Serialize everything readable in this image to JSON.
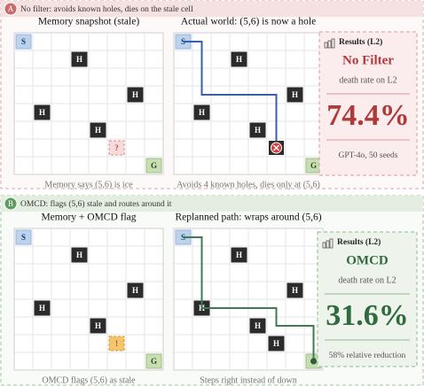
{
  "panel_a": {
    "badge": "A",
    "header": "No filter: avoids known holes, dies on the stale cell",
    "left": {
      "title": "Memory snapshot (stale)",
      "caption": "Memory says (5,6) is ice",
      "cells": [
        "S",
        "H",
        "H",
        "H",
        "H",
        "?",
        "G"
      ]
    },
    "right": {
      "title": "Actual world: (5,6) is now a hole",
      "caption": "Avoids 4 known holes, dies only at (5,6)",
      "cells": [
        "S",
        "H",
        "H",
        "H",
        "H",
        "G"
      ]
    },
    "results": {
      "heading": "Results (L2)",
      "method": "No Filter",
      "metric": "death rate on L2",
      "value": "74.4%",
      "note": "GPT-4o, 50 seeds"
    }
  },
  "panel_b": {
    "badge": "B",
    "header": "OMCD: flags (5,6) stale and routes around it",
    "left": {
      "title": "Memory + OMCD flag",
      "caption": "OMCD flags (5,6) as stale",
      "cells": [
        "S",
        "H",
        "H",
        "H",
        "H",
        "!",
        "G"
      ]
    },
    "right": {
      "title": "Replanned path: wraps around (5,6)",
      "caption": "Steps right instead of down",
      "cells": [
        "S",
        "H",
        "H",
        "H",
        "H",
        "H",
        "G"
      ]
    },
    "results": {
      "heading": "Results (L2)",
      "method": "OMCD",
      "metric": "death rate on L2",
      "value": "31.6%",
      "note": "58% relative reduction"
    }
  }
}
